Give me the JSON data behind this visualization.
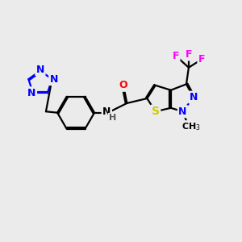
{
  "bg_color": "#ebebeb",
  "atom_colors": {
    "C": "#000000",
    "N": "#0000ff",
    "O": "#ff0000",
    "S": "#cccc00",
    "F": "#ff00ff",
    "H": "#555555"
  },
  "bond_color": "#000000",
  "line_width": 1.6,
  "font_size": 9,
  "figsize": [
    3.0,
    3.0
  ],
  "dpi": 100,
  "xlim": [
    0,
    10
  ],
  "ylim": [
    0,
    10
  ]
}
